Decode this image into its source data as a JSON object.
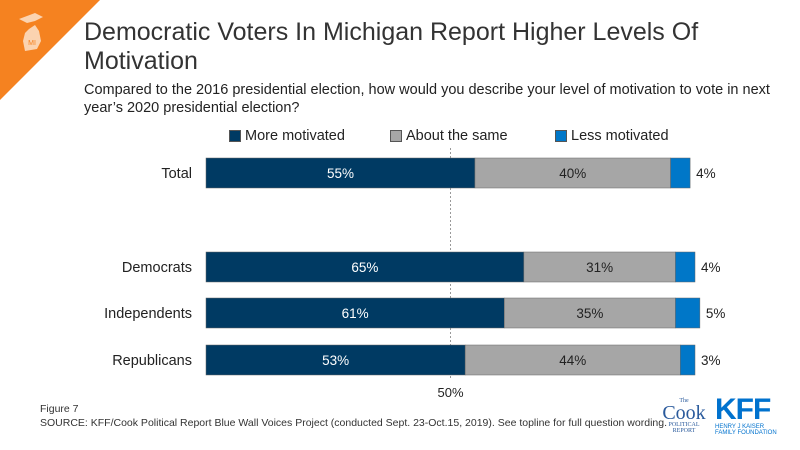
{
  "header": {
    "title": "Democratic Voters In Michigan Report Higher Levels Of Motivation",
    "state_badge": "MI",
    "subtitle": "Compared to the 2016 presidential election, how would you describe your level of motivation to vote in next year’s 2020 presidential election?"
  },
  "colors": {
    "more": "#003a63",
    "same": "#a6a6a6",
    "less": "#0077c8",
    "accent": "#f58220"
  },
  "chart_data": {
    "type": "bar",
    "orientation": "horizontal",
    "stacked": true,
    "title": "Democratic Voters In Michigan Report Higher Levels Of Motivation",
    "categories": [
      "Total",
      "Democrats",
      "Independents",
      "Republicans"
    ],
    "series": [
      {
        "name": "More motivated",
        "values": [
          55,
          65,
          61,
          53
        ]
      },
      {
        "name": "About the same",
        "values": [
          40,
          31,
          35,
          44
        ]
      },
      {
        "name": "Less motivated",
        "values": [
          4,
          4,
          5,
          3
        ]
      }
    ],
    "labels": {
      "more": [
        "55%",
        "65%",
        "61%",
        "53%"
      ],
      "same": [
        "40%",
        "31%",
        "35%",
        "44%"
      ],
      "less": [
        "4%",
        "4%",
        "5%",
        "3%"
      ]
    },
    "reference_line": {
      "value": 50,
      "label": "50%"
    },
    "xlim": [
      0,
      100
    ],
    "legend": "top"
  },
  "footer": {
    "figure": "Figure 7",
    "source": "SOURCE: KFF/Cook Political Report Blue Wall Voices Project (conducted Sept. 23-Oct.15, 2019). See topline for full question wording."
  },
  "logos": {
    "cook_the": "The",
    "cook_name": "Cook",
    "cook_sub1": "POLITICAL",
    "cook_sub2": "REPORT",
    "kff": "KFF",
    "kff_sub1": "HENRY J KAISER",
    "kff_sub2": "FAMILY FOUNDATION"
  }
}
